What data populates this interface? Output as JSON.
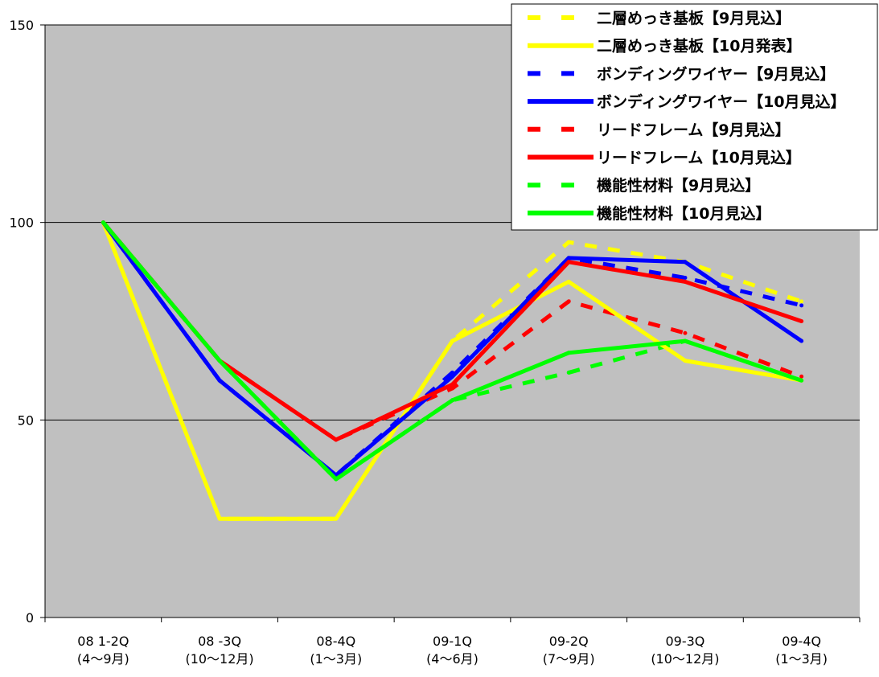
{
  "chart_data": {
    "type": "line",
    "title": "",
    "xlabel": "",
    "ylabel": "",
    "ylim": [
      0,
      150
    ],
    "yticks": [
      0,
      50,
      100,
      150
    ],
    "grid": true,
    "legend_position": "top-right",
    "categories": [
      [
        "08 1-2Q",
        "(4～9月)"
      ],
      [
        "08 -3Q",
        "(10～12月)"
      ],
      [
        "08-4Q",
        "(1～3月)"
      ],
      [
        "09-1Q",
        "(4～6月)"
      ],
      [
        "09-2Q",
        "(7～9月)"
      ],
      [
        "09-3Q",
        "(10～12月)"
      ],
      [
        "09-4Q",
        "(1～3月)"
      ]
    ],
    "series": [
      {
        "name": "二層めっき基板【9月見込】",
        "color": "#ffff00",
        "dashed": true,
        "values": [
          100,
          25,
          25,
          70,
          95,
          90,
          80
        ]
      },
      {
        "name": "二層めっき基板【10月発表】",
        "color": "#ffff00",
        "dashed": false,
        "values": [
          100,
          25,
          25,
          70,
          85,
          65,
          60
        ]
      },
      {
        "name": "ボンディングワイヤー【9月見込】",
        "color": "#0000ff",
        "dashed": true,
        "values": [
          100,
          60,
          36,
          62,
          91,
          86,
          79
        ]
      },
      {
        "name": "ボンディングワイヤー【10月見込】",
        "color": "#0000ff",
        "dashed": false,
        "values": [
          100,
          60,
          36,
          61,
          91,
          90,
          70
        ]
      },
      {
        "name": "リードフレーム【9月見込】",
        "color": "#ff0000",
        "dashed": true,
        "values": [
          100,
          65,
          45,
          58,
          80,
          72,
          61
        ]
      },
      {
        "name": "リードフレーム【10月見込】",
        "color": "#ff0000",
        "dashed": false,
        "values": [
          100,
          65,
          45,
          59,
          90,
          85,
          75
        ]
      },
      {
        "name": "機能性材料【9月見込】",
        "color": "#00ff00",
        "dashed": true,
        "values": [
          100,
          65,
          35,
          55,
          62,
          70,
          60
        ]
      },
      {
        "name": "機能性材料【10月見込】",
        "color": "#00ff00",
        "dashed": false,
        "values": [
          100,
          65,
          35,
          55,
          67,
          70,
          60
        ]
      }
    ]
  }
}
